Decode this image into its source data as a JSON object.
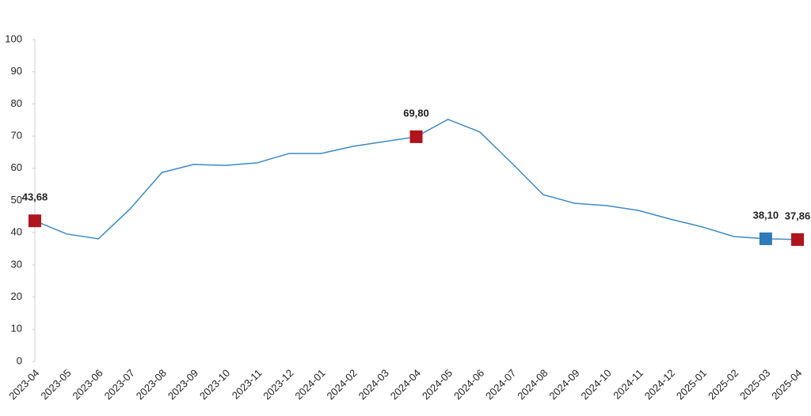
{
  "chart_data": {
    "type": "line",
    "categories": [
      "2023-04",
      "2023-05",
      "2023-06",
      "2023-07",
      "2023-08",
      "2023-09",
      "2023-10",
      "2023-11",
      "2023-12",
      "2024-01",
      "2024-02",
      "2024-03",
      "2024-04",
      "2024-05",
      "2024-06",
      "2024-07",
      "2024-08",
      "2024-09",
      "2024-10",
      "2024-11",
      "2024-12",
      "2025-01",
      "2025-02",
      "2025-03",
      "2025-04"
    ],
    "values": [
      43.68,
      39.6,
      38.1,
      47.4,
      58.7,
      61.2,
      60.9,
      61.7,
      64.6,
      64.6,
      66.8,
      68.3,
      69.8,
      75.2,
      71.3,
      61.7,
      51.8,
      49.1,
      48.4,
      46.9,
      44.2,
      41.8,
      38.8,
      38.1,
      37.86
    ],
    "value_labels": [
      "43,68",
      null,
      null,
      null,
      null,
      null,
      null,
      null,
      null,
      null,
      null,
      null,
      "69,80",
      null,
      null,
      null,
      null,
      null,
      null,
      null,
      null,
      null,
      null,
      "38,10",
      "37,86"
    ],
    "marker_colors": [
      "#b0141c",
      null,
      null,
      null,
      null,
      null,
      null,
      null,
      null,
      null,
      null,
      null,
      "#b0141c",
      null,
      null,
      null,
      null,
      null,
      null,
      null,
      null,
      null,
      null,
      "#2e7bb8",
      "#b0141c"
    ],
    "color": "#3d8ac4",
    "ylim": [
      0,
      100
    ],
    "yticks": [
      0,
      10,
      20,
      30,
      40,
      50,
      60,
      70,
      80,
      90,
      100
    ]
  }
}
